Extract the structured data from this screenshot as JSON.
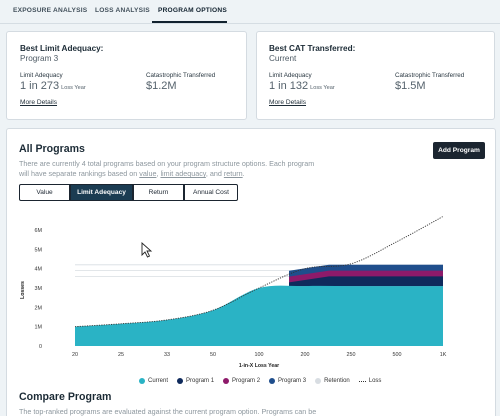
{
  "tabs": [
    {
      "label": "EXPOSURE ANALYSIS"
    },
    {
      "label": "LOSS ANALYSIS"
    },
    {
      "label": "PROGRAM OPTIONS",
      "active": true
    }
  ],
  "best_limit": {
    "title": "Best Limit Adequacy:",
    "program": "Program 3",
    "limit_label": "Limit Adequacy",
    "limit_value": "1 in 273",
    "limit_unit": "Loss Year",
    "cat_label": "Catastrophic Transferred",
    "cat_value": "$1.2M",
    "more_link": "More Details"
  },
  "best_cat": {
    "title": "Best CAT Transferred:",
    "program": "Current",
    "limit_label": "Limit Adequacy",
    "limit_value": "1 in 132",
    "limit_unit": "Loss Year",
    "cat_label": "Catastrophic Transferred",
    "cat_value": "$1.5M",
    "more_link": "More Details"
  },
  "all_programs": {
    "title": "All Programs",
    "desc_line1": "There are currently 4 total programs based on your program structure options. Each program",
    "desc_line2_pre": "will have separate rankings based on ",
    "desc_value": "value",
    "desc_sep1": ", ",
    "desc_limit": "limit adequacy",
    "desc_sep2": ", and ",
    "desc_return": "return",
    "desc_end": ".",
    "add_button": "Add Program",
    "segments": [
      "Value",
      "Limit Adequacy",
      "Return",
      "Annual Cost"
    ],
    "active_segment": "Limit Adequacy"
  },
  "compare": {
    "title": "Compare Program",
    "desc": "The top-ranked programs are evaluated against the current program option. Programs can be"
  },
  "colors": {
    "current": "#2ab3c5",
    "program1": "#0f2a5c",
    "program2": "#8e1a6a",
    "program3": "#1f4e8c",
    "retention": "#d8dde2",
    "loss": "#333333"
  },
  "chart_data": {
    "type": "area",
    "xlabel": "1-in-X Loss Year",
    "ylabel": "Losses",
    "x_ticks": [
      "20",
      "25",
      "33",
      "50",
      "100",
      "200",
      "250",
      "500",
      "1K"
    ],
    "y_ticks": [
      "0",
      "1M",
      "2M",
      "3M",
      "4M",
      "5M",
      "6M"
    ],
    "ylim": [
      0,
      6000000
    ],
    "legend": [
      {
        "name": "Current",
        "icon": "dot",
        "color": "#2ab3c5"
      },
      {
        "name": "Program 1",
        "icon": "dot",
        "color": "#0f2a5c"
      },
      {
        "name": "Program 2",
        "icon": "dot",
        "color": "#8e1a6a"
      },
      {
        "name": "Program 3",
        "icon": "dot",
        "color": "#1f4e8c"
      },
      {
        "name": "Retention",
        "icon": "dot",
        "color": "#d8dde2"
      },
      {
        "name": "Loss",
        "icon": "dotted-line",
        "color": "#333333"
      }
    ],
    "series": [
      {
        "name": "Current",
        "values": [
          1000000,
          1150000,
          1350000,
          1850000,
          3000000,
          3100000,
          3100000,
          3100000,
          3100000
        ]
      },
      {
        "name": "Program 1",
        "values": [
          null,
          null,
          null,
          null,
          3600000,
          3600000,
          3600000,
          3600000,
          3600000
        ]
      },
      {
        "name": "Program 2",
        "values": [
          null,
          null,
          null,
          null,
          3900000,
          3900000,
          3900000,
          3900000,
          3900000
        ]
      },
      {
        "name": "Program 3",
        "values": [
          null,
          null,
          null,
          null,
          null,
          4200000,
          4200000,
          4200000,
          4200000
        ]
      },
      {
        "name": "Loss",
        "values": [
          1000000,
          1150000,
          1350000,
          1850000,
          3000000,
          4000000,
          4250000,
          5400000,
          6700000
        ]
      }
    ]
  }
}
